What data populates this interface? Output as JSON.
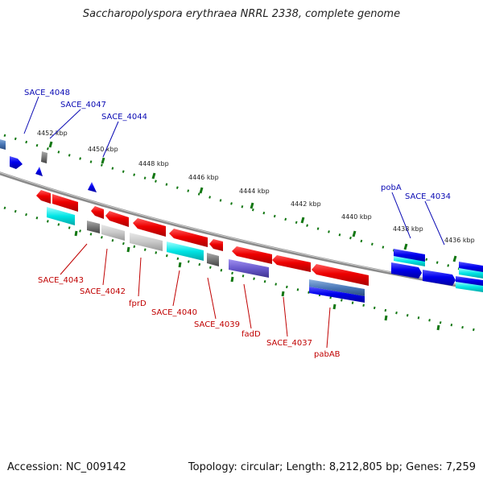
{
  "title": "Saccharopolyspora erythraea NRRL 2338, complete genome",
  "footer": {
    "accession": "Accession: NC_009142",
    "topology": "Topology: circular; Length: 8,212,805 bp; Genes: 7,259"
  },
  "coordinate_labels": [
    "4452 kbp",
    "4450 kbp",
    "4448 kbp",
    "4446 kbp",
    "4444 kbp",
    "4442 kbp",
    "4440 kbp",
    "4438 kbp",
    "4436 kbp"
  ],
  "gene_labels_forward": [
    "SACE_4048",
    "SACE_4047",
    "SACE_4044",
    "pobA",
    "SACE_4034"
  ],
  "gene_labels_reverse": [
    "SACE_4043",
    "SACE_4042",
    "fprD",
    "SACE_4040",
    "SACE_4039",
    "fadD",
    "SACE_4037",
    "pabAB"
  ],
  "colors": {
    "cds_forward": "#0000ee",
    "cds_reverse": "#ee0000",
    "cyan_feature": "#00e5e5",
    "gray_feature": "#777777",
    "light_gray_feature": "#c8c8c8",
    "purple_feature": "#6a5acd",
    "backbone": "#8a8a8a",
    "tick_green": "#117711",
    "label_forward": "#0a0ab4",
    "label_reverse": "#c00000"
  }
}
